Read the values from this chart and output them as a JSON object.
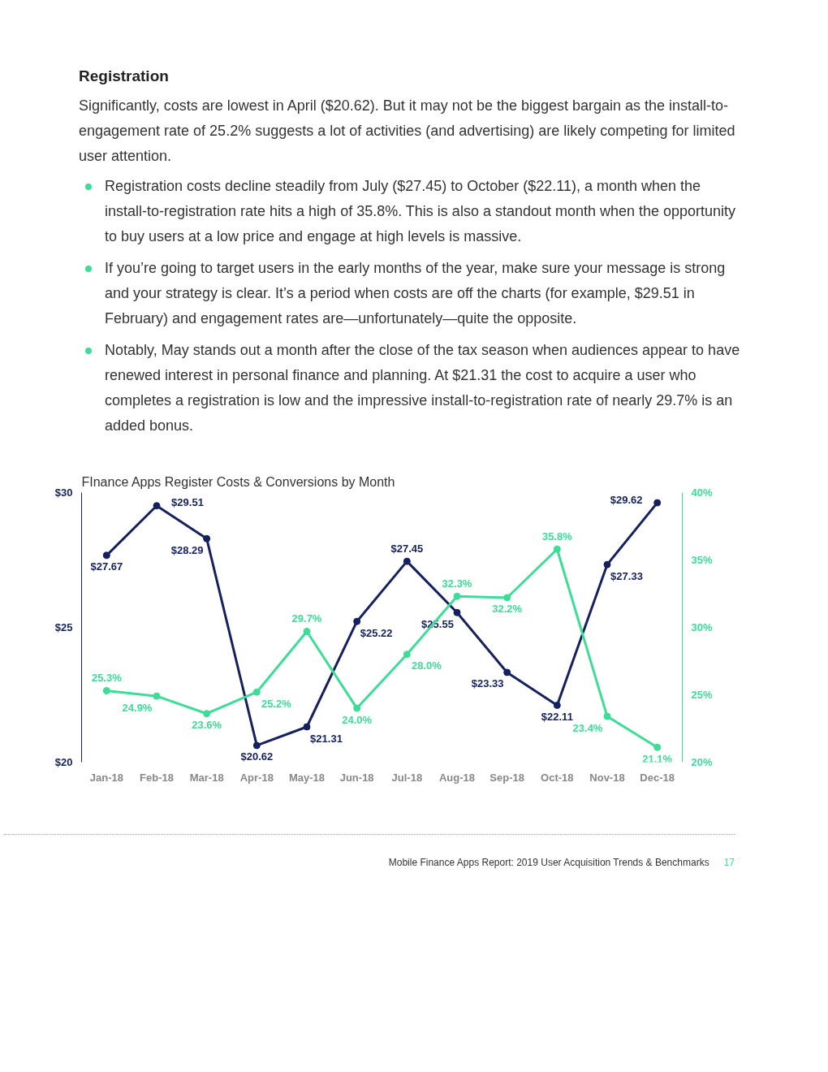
{
  "chart_data": {
    "type": "line",
    "title": "FInance Apps Register Costs & Conversions by Month",
    "annotations": [
      "Registration",
      "Significantly, costs are lowest in April ($20.62). But it may not be the biggest bargain as the install-to-engagement rate of 25.2% suggests a lot of activities (and advertising) are likely competing for limited user attention.",
      "Registration costs decline steadily from July ($27.45) to October ($22.11), a month when the install-to-registration rate hits a high of 35.8%. This is also a standout month when the opportunity to buy users at a low price and engage at high levels is massive.",
      "If you’re going to target users in the early months of the year, make sure your message is strong and your strategy is clear. It’s a period when costs are off the charts (for example, $29.51 in February) and engagement rates are—unfortunately—quite the opposite.",
      "Notably, May stands out a month after the close of the tax season when audiences appear to have renewed interest in personal finance and planning. At $21.31 the cost to acquire a user who completes a registration is low and the impressive install-to-registration rate of nearly 29.7% is an added bonus.",
      "Mobile Finance Apps Report: 2019 User Acquisition Trends & Benchmarks",
      "17"
    ],
    "categories": [
      "Jan-18",
      "Feb-18",
      "Mar-18",
      "Apr-18",
      "May-18",
      "Jun-18",
      "Jul-18",
      "Aug-18",
      "Sep-18",
      "Oct-18",
      "Nov-18",
      "Dec-18"
    ],
    "series": [
      {
        "color": "#14215e",
        "values": [
          27.67,
          29.51,
          28.29,
          20.62,
          21.31,
          25.22,
          27.45,
          25.55,
          23.33,
          22.11,
          27.33,
          29.62
        ],
        "value_labels": [
          "$27.67",
          "$29.51",
          "$28.29",
          "$20.62",
          "$21.31",
          "$25.22",
          "$27.45",
          "$25.55",
          "$23.33",
          "$22.11",
          "$27.33",
          "$29.62"
        ]
      },
      {
        "color": "#3ddc97",
        "axis": "y2",
        "values": [
          25.3,
          24.9,
          23.6,
          25.2,
          29.7,
          24.0,
          28.0,
          32.3,
          32.2,
          35.8,
          23.4,
          21.1
        ],
        "value_labels": [
          "25.3%",
          "24.9%",
          "23.6%",
          "25.2%",
          "29.7%",
          "24.0%",
          "28.0%",
          "32.3%",
          "32.2%",
          "35.8%",
          "23.4%",
          "21.1%"
        ]
      }
    ],
    "ylim": [
      20,
      30
    ],
    "yticks": [
      {
        "value": 20,
        "label": "$20"
      },
      {
        "value": 25,
        "label": "$25"
      },
      {
        "value": 30,
        "label": "$30"
      }
    ],
    "y2lim": [
      20,
      40
    ],
    "y2ticks": [
      {
        "value": 20,
        "label": "20%"
      },
      {
        "value": 25,
        "label": "25%"
      },
      {
        "value": 30,
        "label": "30%"
      },
      {
        "value": 35,
        "label": "35%"
      },
      {
        "value": 40,
        "label": "40%"
      }
    ],
    "grid": false,
    "marker": "circle",
    "line_style": "solid"
  }
}
